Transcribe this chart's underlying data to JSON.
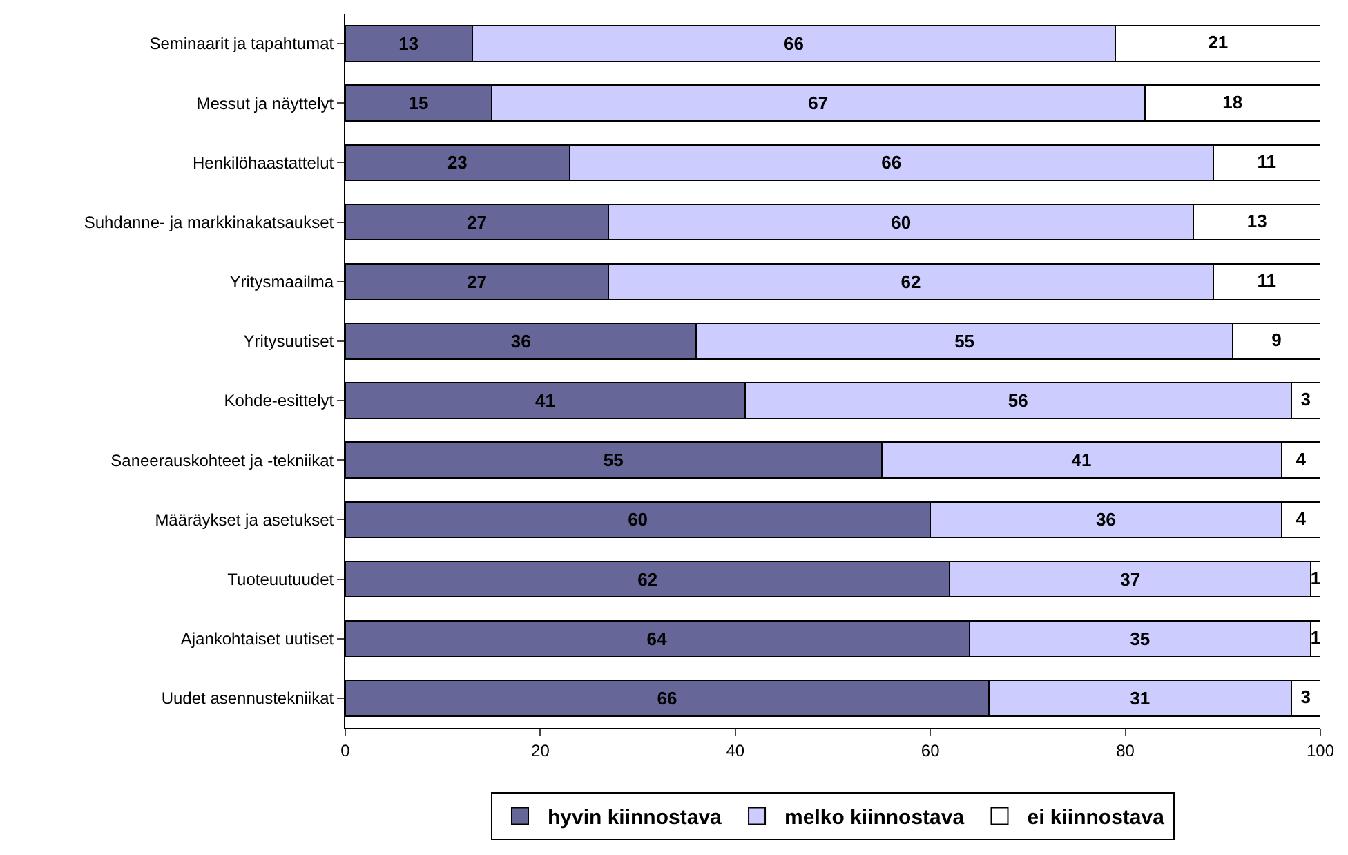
{
  "chart_data": {
    "type": "bar",
    "orientation": "horizontal",
    "stacked": true,
    "data_labels": true,
    "legend": "bottom",
    "categories": [
      "Seminaarit ja tapahtumat",
      "Messut ja näyttelyt",
      "Henkilöhaastattelut",
      "Suhdanne- ja markkinakatsaukset",
      "Yritysmaailma",
      "Yritysuutiset",
      "Kohde-esittelyt",
      "Saneerauskohteet ja -tekniikat",
      "Määräykset ja asetukset",
      "Tuoteuutuudet",
      "Ajankohtaiset uutiset",
      "Uudet asennustekniikat"
    ],
    "xlim": [
      0,
      100
    ],
    "xticks": [
      0,
      20,
      40,
      60,
      80,
      100
    ],
    "series": [
      {
        "name": "hyvin kiinnostava",
        "color": "#666699",
        "values": [
          13,
          15,
          23,
          27,
          27,
          36,
          41,
          55,
          60,
          62,
          64,
          66
        ]
      },
      {
        "name": "melko kiinnostava",
        "color": "#ccccff",
        "values": [
          66,
          67,
          66,
          60,
          62,
          55,
          56,
          41,
          36,
          37,
          35,
          31
        ]
      },
      {
        "name": "ei kiinnostava",
        "color": "#ffffff",
        "values": [
          21,
          18,
          11,
          13,
          11,
          9,
          3,
          4,
          4,
          1,
          1,
          3
        ]
      }
    ]
  }
}
